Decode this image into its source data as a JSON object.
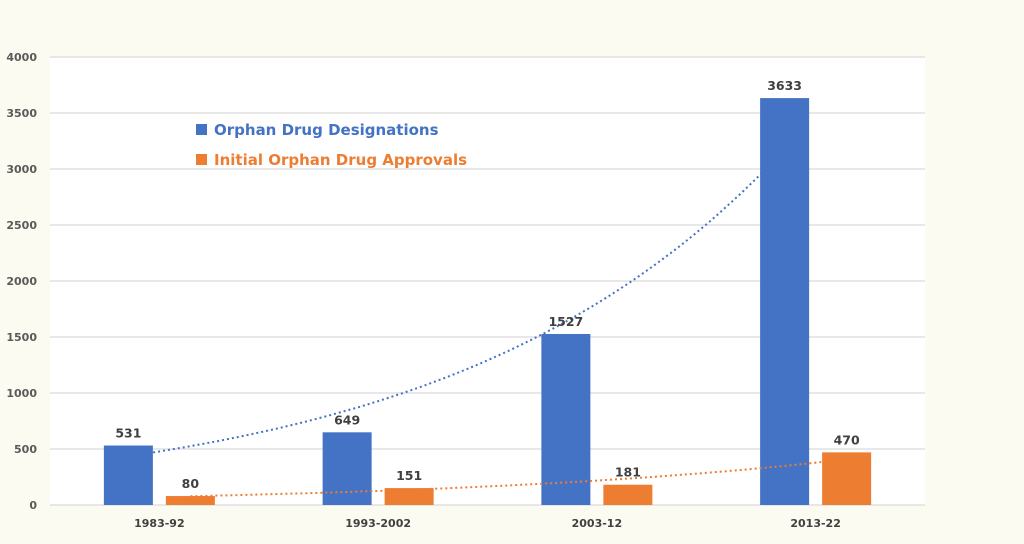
{
  "chart_data": {
    "type": "bar",
    "title": "",
    "xlabel": "",
    "ylabel": "",
    "categories": [
      "1983-92",
      "1993-2002",
      "2003-12",
      "2013-22"
    ],
    "series": [
      {
        "name": "Orphan Drug Designations",
        "color": "#4472c4",
        "values": [
          531,
          649,
          1527,
          3633
        ],
        "trendline": "exponential",
        "trend_color": "#4472c4"
      },
      {
        "name": "Initial Orphan Drug Approvals",
        "color": "#ed7d31",
        "values": [
          80,
          151,
          181,
          470
        ],
        "trendline": "exponential",
        "trend_color": "#ed7d31"
      }
    ],
    "ylim": [
      0,
      4000
    ],
    "yticks": [
      0,
      500,
      1000,
      1500,
      2000,
      2500,
      3000,
      3500,
      4000
    ],
    "grid": true,
    "legend_position": "top-left",
    "data_labels": true
  }
}
